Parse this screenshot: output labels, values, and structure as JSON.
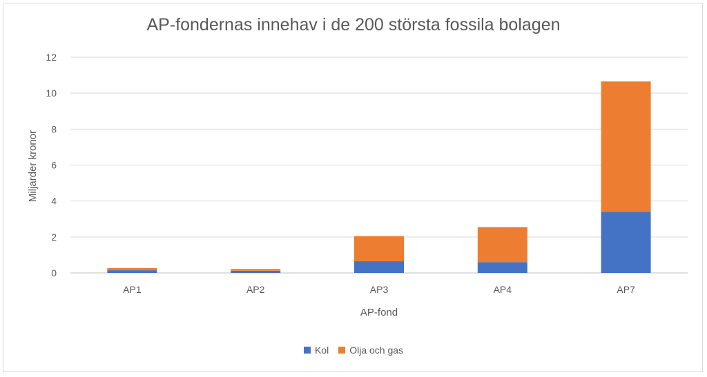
{
  "chart_data": {
    "type": "bar",
    "stacked": true,
    "title": "AP-fondernas innehav i de 200 största fossila bolagen",
    "xlabel": "AP-fond",
    "ylabel": "Miljarder kronor",
    "categories": [
      "AP1",
      "AP2",
      "AP3",
      "AP4",
      "AP7"
    ],
    "ylim": [
      0,
      12
    ],
    "yticks": [
      0,
      2,
      4,
      6,
      8,
      10,
      12
    ],
    "grid": true,
    "legend_position": "bottom",
    "series": [
      {
        "name": "Kol",
        "color": "#4472c4",
        "values": [
          0.15,
          0.12,
          0.65,
          0.6,
          3.4
        ]
      },
      {
        "name": "Olja och gas",
        "color": "#ed7d31",
        "values": [
          0.12,
          0.1,
          1.4,
          1.95,
          7.25
        ]
      }
    ]
  }
}
